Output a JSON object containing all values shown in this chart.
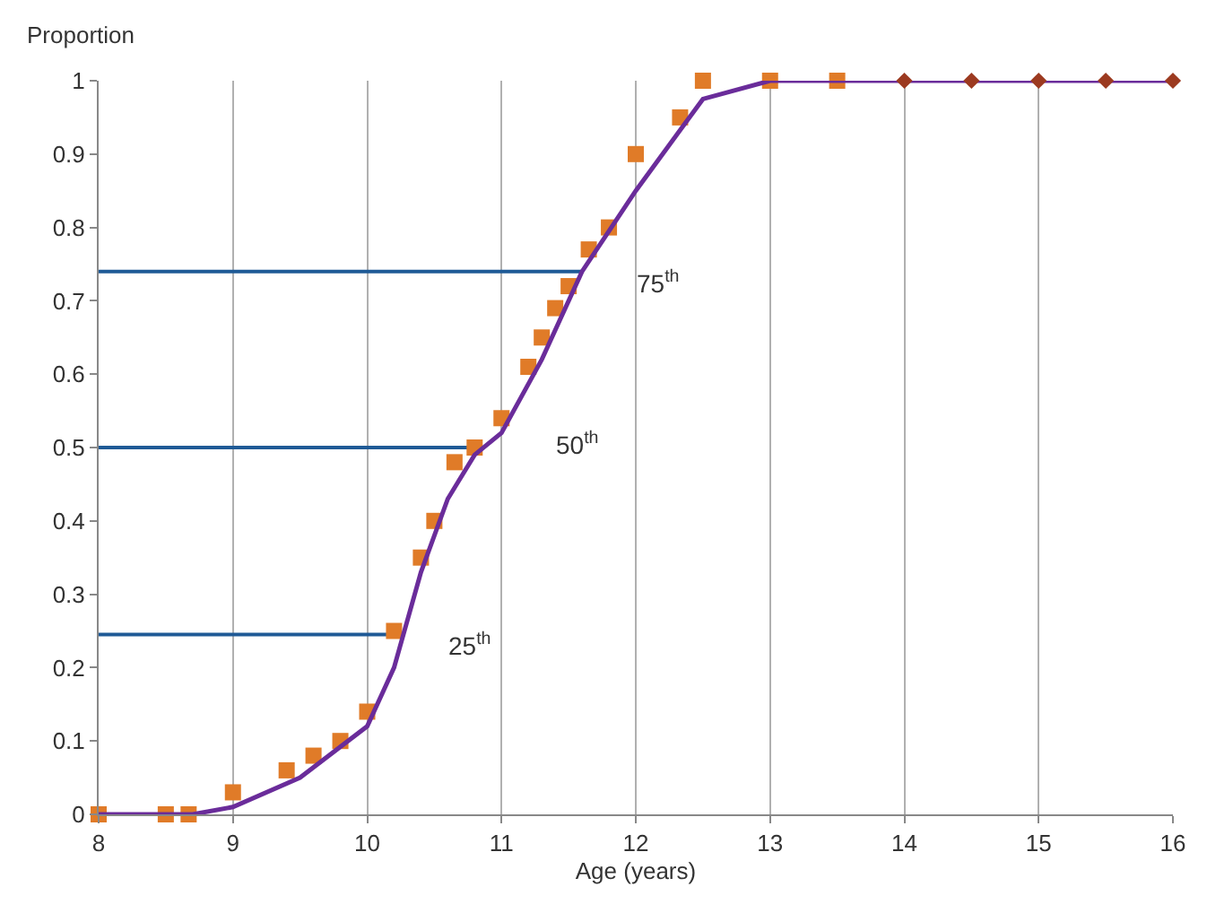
{
  "chart_data": {
    "type": "scatter",
    "ylabel": "Proportion",
    "xlabel": "Age (years)",
    "xlim": [
      8,
      16
    ],
    "xticks": [
      8,
      9,
      10,
      11,
      12,
      13,
      14,
      15,
      16
    ],
    "ylim": [
      0,
      1
    ],
    "yticks": [
      0,
      0.1,
      0.2,
      0.3,
      0.4,
      0.5,
      0.6,
      0.7,
      0.8,
      0.9,
      1
    ],
    "grid": "x",
    "series": [
      {
        "type": "line",
        "color": "#1f5a96",
        "marker": "none",
        "x": [
          8,
          11.6
        ],
        "values": [
          0.74,
          0.74
        ]
      },
      {
        "type": "line",
        "color": "#1f5a96",
        "marker": "none",
        "x": [
          8,
          10.8
        ],
        "values": [
          0.5,
          0.5
        ]
      },
      {
        "type": "line",
        "color": "#1f5a96",
        "marker": "none",
        "x": [
          8,
          10.2
        ],
        "values": [
          0.245,
          0.245
        ]
      },
      {
        "color": "#e07b28",
        "marker": "square",
        "x": [
          8,
          8.5,
          8.67,
          9,
          9.4,
          9.6,
          9.8,
          10,
          10.2,
          10.4,
          10.5,
          10.65,
          10.8,
          11,
          11.2,
          11.3,
          11.4,
          11.5,
          11.65,
          11.8,
          12,
          12.33,
          12.5,
          13,
          13.5
        ],
        "values": [
          0,
          0,
          0,
          0.03,
          0.06,
          0.08,
          0.1,
          0.14,
          0.25,
          0.35,
          0.4,
          0.48,
          0.5,
          0.54,
          0.61,
          0.65,
          0.69,
          0.72,
          0.77,
          0.8,
          0.9,
          0.95,
          1,
          1,
          1
        ]
      },
      {
        "type": "line",
        "color": "#6a2c9a",
        "marker": "none",
        "x": [
          8,
          8.7,
          9,
          9.5,
          10,
          10.2,
          10.4,
          10.6,
          10.8,
          11,
          11.3,
          11.6,
          12,
          12.5,
          13,
          16
        ],
        "values": [
          0,
          0,
          0.01,
          0.05,
          0.12,
          0.2,
          0.33,
          0.43,
          0.49,
          0.52,
          0.62,
          0.74,
          0.85,
          0.975,
          1,
          1
        ]
      },
      {
        "color": "#9c3a20",
        "marker": "diamond",
        "x": [
          14,
          14.5,
          15,
          15.5,
          16
        ],
        "values": [
          1,
          1,
          1,
          1,
          1
        ]
      }
    ],
    "annotations": [
      {
        "text": "75$^{th}$",
        "x": 11.6,
        "y": 0.74
      },
      {
        "text": "50$^{th}$",
        "x": 11,
        "y": 0.52
      },
      {
        "text": "25$^{th}$",
        "x": 10.2,
        "y": 0.245
      }
    ]
  }
}
